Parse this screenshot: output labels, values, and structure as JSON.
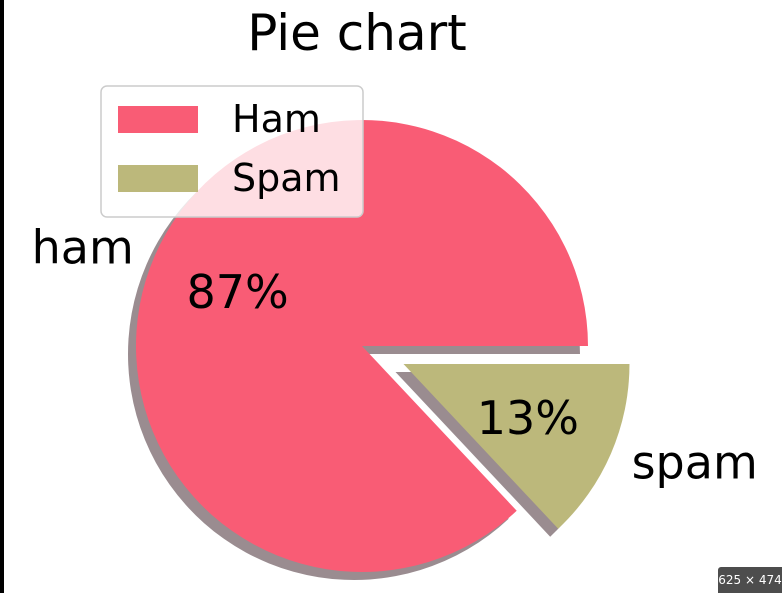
{
  "chart_data": {
    "type": "pie",
    "title": "Pie chart",
    "slices": [
      {
        "label": "ham",
        "legend": "Ham",
        "value": 87,
        "pct_label": "87%",
        "color": "#f95c75",
        "explode": 0
      },
      {
        "label": "spam",
        "legend": "Spam",
        "value": 13,
        "pct_label": "13%",
        "color": "#bcb87b",
        "explode": 0.2
      }
    ],
    "start_angle_deg": 0,
    "shadow": true,
    "shadow_color": "#9a8c90",
    "legend_position": "upper-left"
  },
  "badge": {
    "text": "625 × 474"
  }
}
